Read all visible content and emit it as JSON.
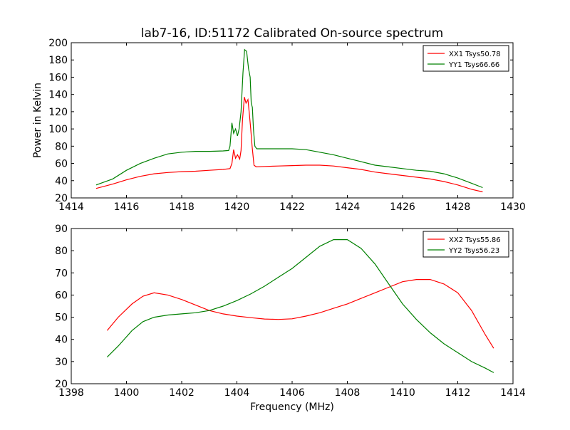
{
  "chart_data": [
    {
      "type": "line",
      "title": "lab7-16, ID:51172 Calibrated On-source spectrum",
      "xlabel": "",
      "ylabel": "Power in Kelvin",
      "xlim": [
        1414,
        1430
      ],
      "ylim": [
        20,
        200
      ],
      "xticks": [
        "1414",
        "1416",
        "1418",
        "1420",
        "1422",
        "1424",
        "1426",
        "1428",
        "1430"
      ],
      "yticks": [
        "20",
        "40",
        "60",
        "80",
        "100",
        "120",
        "140",
        "160",
        "180",
        "200"
      ],
      "grid": false,
      "legend_position": "top-right",
      "series": [
        {
          "name": "XX1 Tsys50.78",
          "color": "#ff0000",
          "points": [
            [
              1414.9,
              31
            ],
            [
              1415.5,
              36
            ],
            [
              1416,
              41
            ],
            [
              1416.5,
              45
            ],
            [
              1417,
              48
            ],
            [
              1417.5,
              49.5
            ],
            [
              1418,
              50.5
            ],
            [
              1418.5,
              51
            ],
            [
              1419,
              52
            ],
            [
              1419.5,
              53
            ],
            [
              1419.75,
              54
            ],
            [
              1419.82,
              60
            ],
            [
              1419.88,
              76
            ],
            [
              1419.95,
              66
            ],
            [
              1420.02,
              70
            ],
            [
              1420.1,
              65
            ],
            [
              1420.15,
              75
            ],
            [
              1420.2,
              110
            ],
            [
              1420.27,
              137
            ],
            [
              1420.33,
              130
            ],
            [
              1420.4,
              134
            ],
            [
              1420.45,
              118
            ],
            [
              1420.5,
              100
            ],
            [
              1420.55,
              80
            ],
            [
              1420.62,
              58
            ],
            [
              1420.7,
              56
            ],
            [
              1421,
              56.5
            ],
            [
              1421.5,
              57
            ],
            [
              1422,
              57.5
            ],
            [
              1422.5,
              58
            ],
            [
              1423,
              58
            ],
            [
              1423.5,
              57
            ],
            [
              1424,
              55
            ],
            [
              1424.5,
              53
            ],
            [
              1425,
              50
            ],
            [
              1425.5,
              48
            ],
            [
              1426,
              46
            ],
            [
              1426.5,
              44
            ],
            [
              1427,
              42
            ],
            [
              1427.5,
              39
            ],
            [
              1428,
              35
            ],
            [
              1428.5,
              30
            ],
            [
              1428.9,
              27
            ]
          ]
        },
        {
          "name": "YY1 Tsys66.66",
          "color": "#008000",
          "points": [
            [
              1414.9,
              35
            ],
            [
              1415.5,
              42
            ],
            [
              1416,
              52
            ],
            [
              1416.5,
              60
            ],
            [
              1417,
              66
            ],
            [
              1417.5,
              71
            ],
            [
              1418,
              73
            ],
            [
              1418.5,
              74
            ],
            [
              1419,
              74
            ],
            [
              1419.5,
              74.5
            ],
            [
              1419.7,
              75
            ],
            [
              1419.75,
              80
            ],
            [
              1419.82,
              107
            ],
            [
              1419.88,
              95
            ],
            [
              1419.95,
              100
            ],
            [
              1420.02,
              92
            ],
            [
              1420.08,
              100
            ],
            [
              1420.15,
              120
            ],
            [
              1420.22,
              165
            ],
            [
              1420.28,
              192
            ],
            [
              1420.35,
              190
            ],
            [
              1420.42,
              170
            ],
            [
              1420.48,
              160
            ],
            [
              1420.52,
              130
            ],
            [
              1420.56,
              125
            ],
            [
              1420.6,
              100
            ],
            [
              1420.65,
              80
            ],
            [
              1420.72,
              77
            ],
            [
              1421,
              77
            ],
            [
              1421.5,
              77
            ],
            [
              1422,
              77
            ],
            [
              1422.5,
              76
            ],
            [
              1423,
              73
            ],
            [
              1423.5,
              70
            ],
            [
              1424,
              66
            ],
            [
              1424.5,
              62
            ],
            [
              1425,
              58
            ],
            [
              1425.5,
              56
            ],
            [
              1426,
              54
            ],
            [
              1426.5,
              52
            ],
            [
              1427,
              51
            ],
            [
              1427.5,
              48
            ],
            [
              1428,
              43
            ],
            [
              1428.5,
              37
            ],
            [
              1428.9,
              32
            ]
          ]
        }
      ]
    },
    {
      "type": "line",
      "title": "",
      "xlabel": "Frequency (MHz)",
      "ylabel": "",
      "xlim": [
        1398,
        1414
      ],
      "ylim": [
        20,
        90
      ],
      "xticks": [
        "1398",
        "1400",
        "1402",
        "1404",
        "1406",
        "1408",
        "1410",
        "1412",
        "1414"
      ],
      "yticks": [
        "20",
        "30",
        "40",
        "50",
        "60",
        "70",
        "80",
        "90"
      ],
      "grid": false,
      "legend_position": "top-right",
      "series": [
        {
          "name": "XX2 Tsys55.86",
          "color": "#ff0000",
          "points": [
            [
              1399.3,
              44
            ],
            [
              1399.7,
              50
            ],
            [
              1400.2,
              56
            ],
            [
              1400.6,
              59.5
            ],
            [
              1401,
              61
            ],
            [
              1401.5,
              60
            ],
            [
              1402,
              58
            ],
            [
              1402.5,
              55.5
            ],
            [
              1403,
              53
            ],
            [
              1403.5,
              51.5
            ],
            [
              1404,
              50.5
            ],
            [
              1404.5,
              49.8
            ],
            [
              1405,
              49.2
            ],
            [
              1405.5,
              49
            ],
            [
              1406,
              49.3
            ],
            [
              1406.5,
              50.5
            ],
            [
              1407,
              52
            ],
            [
              1407.5,
              54
            ],
            [
              1408,
              56
            ],
            [
              1408.5,
              58.5
            ],
            [
              1409,
              61
            ],
            [
              1409.5,
              63.5
            ],
            [
              1410,
              66
            ],
            [
              1410.5,
              67
            ],
            [
              1411,
              67
            ],
            [
              1411.5,
              65
            ],
            [
              1412,
              61
            ],
            [
              1412.5,
              53
            ],
            [
              1413,
              42
            ],
            [
              1413.3,
              36
            ]
          ]
        },
        {
          "name": "YY2 Tsys56.23",
          "color": "#008000",
          "points": [
            [
              1399.3,
              32
            ],
            [
              1399.7,
              37
            ],
            [
              1400.2,
              44
            ],
            [
              1400.6,
              48
            ],
            [
              1401,
              50
            ],
            [
              1401.5,
              51
            ],
            [
              1402,
              51.5
            ],
            [
              1402.5,
              52
            ],
            [
              1403,
              53
            ],
            [
              1403.5,
              55
            ],
            [
              1404,
              57.5
            ],
            [
              1404.5,
              60.5
            ],
            [
              1405,
              64
            ],
            [
              1405.5,
              68
            ],
            [
              1406,
              72
            ],
            [
              1406.5,
              77
            ],
            [
              1407,
              82
            ],
            [
              1407.5,
              85
            ],
            [
              1408,
              85
            ],
            [
              1408.5,
              81
            ],
            [
              1409,
              74
            ],
            [
              1409.5,
              65
            ],
            [
              1410,
              56
            ],
            [
              1410.5,
              49
            ],
            [
              1411,
              43
            ],
            [
              1411.5,
              38
            ],
            [
              1412,
              34
            ],
            [
              1412.5,
              30
            ],
            [
              1413,
              27
            ],
            [
              1413.3,
              25
            ]
          ]
        }
      ]
    }
  ]
}
